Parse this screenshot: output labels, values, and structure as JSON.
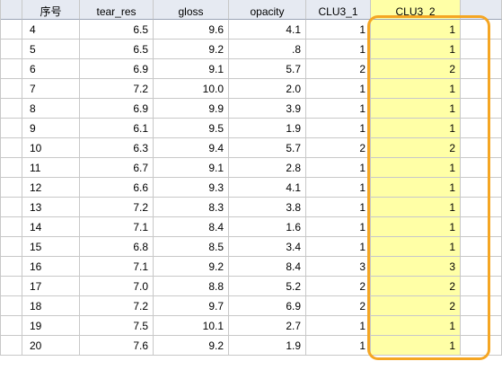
{
  "columns": [
    "序号",
    "tear_res",
    "gloss",
    "opacity",
    "CLU3_1",
    "CLU3_2"
  ],
  "rows": [
    [
      "4",
      "6.5",
      "9.6",
      "4.1",
      "1",
      "1"
    ],
    [
      "5",
      "6.5",
      "9.2",
      ".8",
      "1",
      "1"
    ],
    [
      "6",
      "6.9",
      "9.1",
      "5.7",
      "2",
      "2"
    ],
    [
      "7",
      "7.2",
      "10.0",
      "2.0",
      "1",
      "1"
    ],
    [
      "8",
      "6.9",
      "9.9",
      "3.9",
      "1",
      "1"
    ],
    [
      "9",
      "6.1",
      "9.5",
      "1.9",
      "1",
      "1"
    ],
    [
      "10",
      "6.3",
      "9.4",
      "5.7",
      "2",
      "2"
    ],
    [
      "11",
      "6.7",
      "9.1",
      "2.8",
      "1",
      "1"
    ],
    [
      "12",
      "6.6",
      "9.3",
      "4.1",
      "1",
      "1"
    ],
    [
      "13",
      "7.2",
      "8.3",
      "3.8",
      "1",
      "1"
    ],
    [
      "14",
      "7.1",
      "8.4",
      "1.6",
      "1",
      "1"
    ],
    [
      "15",
      "6.8",
      "8.5",
      "3.4",
      "1",
      "1"
    ],
    [
      "16",
      "7.1",
      "9.2",
      "8.4",
      "3",
      "3"
    ],
    [
      "17",
      "7.0",
      "8.8",
      "5.2",
      "2",
      "2"
    ],
    [
      "18",
      "7.2",
      "9.7",
      "6.9",
      "2",
      "2"
    ],
    [
      "19",
      "7.5",
      "10.1",
      "2.7",
      "1",
      "1"
    ],
    [
      "20",
      "7.6",
      "9.2",
      "1.9",
      "1",
      "1"
    ]
  ],
  "colors": {
    "header_bg": "#e6eaf2",
    "highlight_fill": "#ffffa6",
    "highlight_border": "#f5a623",
    "grid_line": "#c8c8c8"
  }
}
